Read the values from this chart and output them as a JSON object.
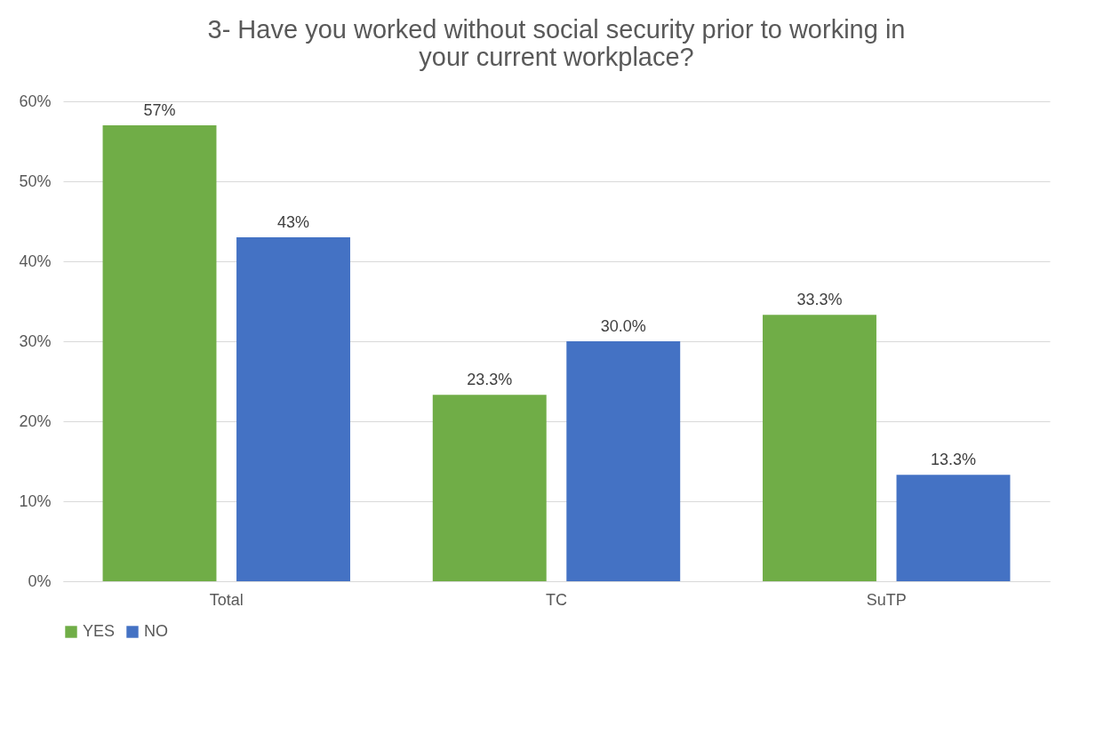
{
  "chart_data": {
    "type": "bar",
    "title": "3- Have you worked without social security prior to working in your current workplace?",
    "categories": [
      "Total",
      "TC",
      "SuTP"
    ],
    "series": [
      {
        "name": "YES",
        "color": "#70ad47",
        "values": [
          57,
          23.3,
          33.3
        ],
        "value_labels": [
          "57%",
          "23.3%",
          "33.3%"
        ]
      },
      {
        "name": "NO",
        "color": "#4472c4",
        "values": [
          43,
          30.0,
          13.3
        ],
        "value_labels": [
          "43%",
          "30.0%",
          "13.3%"
        ]
      }
    ],
    "ylim": [
      0,
      60
    ],
    "yticks": [
      {
        "value": 0,
        "label": "0%"
      },
      {
        "value": 10,
        "label": "10%"
      },
      {
        "value": 20,
        "label": "20%"
      },
      {
        "value": 30,
        "label": "30%"
      },
      {
        "value": 40,
        "label": "40%"
      },
      {
        "value": 50,
        "label": "50%"
      },
      {
        "value": 60,
        "label": "60%"
      }
    ],
    "grid": "y",
    "legend": "bottom"
  }
}
